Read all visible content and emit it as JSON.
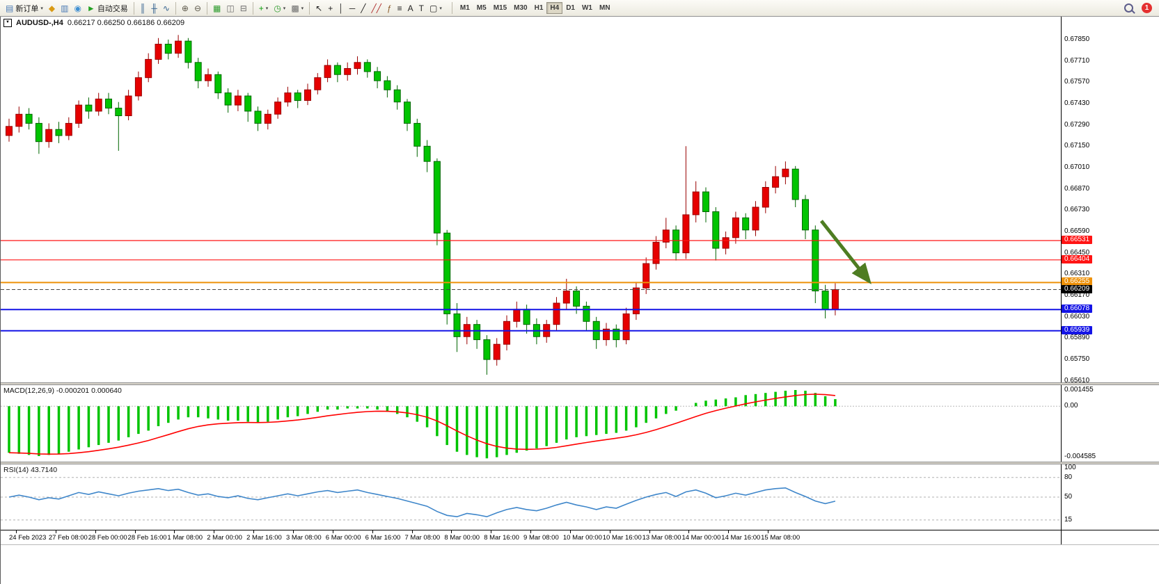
{
  "toolbar": {
    "notification": "1",
    "timeframes": [
      "M1",
      "M5",
      "M15",
      "M30",
      "H1",
      "H4",
      "D1",
      "W1",
      "MN"
    ],
    "active_timeframe": "H4",
    "buttons": [
      {
        "name": "new-order-button",
        "glyph": "▤",
        "color": "#4a7ab5",
        "label": "新订单",
        "caret": true
      },
      {
        "name": "chart-profile-button",
        "glyph": "◆",
        "color": "#d99a14"
      },
      {
        "name": "charts-list-button",
        "glyph": "▥",
        "color": "#4a7ab5"
      },
      {
        "name": "web-terminal-button",
        "glyph": "◉",
        "color": "#3f8fd2"
      },
      {
        "name": "autotrade-button",
        "glyph": "►",
        "color": "#21a121",
        "label": "自动交易"
      },
      {
        "sep": true
      },
      {
        "name": "bar-chart-mode-button",
        "glyph": "║",
        "color": "#33618f"
      },
      {
        "name": "candle-chart-mode-button",
        "glyph": "╫",
        "color": "#33618f"
      },
      {
        "name": "line-chart-mode-button",
        "glyph": "∿",
        "color": "#33618f"
      },
      {
        "sep": true
      },
      {
        "name": "zoom-in-button",
        "glyph": "⊕",
        "color": "#5a5648"
      },
      {
        "name": "zoom-out-button",
        "glyph": "⊖",
        "color": "#5a5648"
      },
      {
        "sep": true
      },
      {
        "name": "tile-windows-button",
        "glyph": "▦",
        "color": "#2a9a2a"
      },
      {
        "name": "arrange-windows-button",
        "glyph": "◫",
        "color": "#6a6a6a"
      },
      {
        "name": "cascade-windows-button",
        "glyph": "⊟",
        "color": "#6a6a6a"
      },
      {
        "sep": true
      },
      {
        "name": "add-indicator-button",
        "glyph": "+",
        "color": "#0b9e0b",
        "caret": true
      },
      {
        "name": "period-selector-button",
        "glyph": "◷",
        "color": "#2a9a2a",
        "caret": true
      },
      {
        "name": "templates-button",
        "glyph": "▩",
        "color": "#6a6a6a",
        "caret": true
      },
      {
        "sep": true
      },
      {
        "name": "cursor-tool-button",
        "glyph": "↖",
        "color": "#222222"
      },
      {
        "name": "crosshair-tool-button",
        "glyph": "+",
        "color": "#222222"
      },
      {
        "name": "vertical-line-tool-button",
        "glyph": "│",
        "color": "#222222"
      },
      {
        "name": "horizontal-line-tool-button",
        "glyph": "─",
        "color": "#222222"
      },
      {
        "name": "trendline-tool-button",
        "glyph": "╱",
        "color": "#222222"
      },
      {
        "name": "channel-tool-button",
        "glyph": "╱╱",
        "color": "#b03030"
      },
      {
        "name": "fibonacci-tool-button",
        "glyph": "ƒ",
        "color": "#8a5a2a"
      },
      {
        "name": "equidistant-tool-button",
        "glyph": "≡",
        "color": "#222222"
      },
      {
        "name": "text-tool-button",
        "glyph": "A",
        "color": "#222222"
      },
      {
        "name": "label-tool-button",
        "glyph": "T",
        "color": "#222222"
      },
      {
        "name": "shapes-tool-button",
        "glyph": "▢",
        "color": "#222222",
        "caret": true
      }
    ]
  },
  "chart": {
    "title": "AUDUSD-,H4",
    "ohlc": "0.66217 0.66250 0.66186 0.66209",
    "collapse_glyph": "▼"
  },
  "chart_data": {
    "type": "candlestick",
    "symbol": "AUDUSD-",
    "timeframe": "H4",
    "colors": {
      "bull": "#e60000",
      "bull_border": "#990000",
      "bear": "#00c400",
      "bear_border": "#006600"
    },
    "price_axis": {
      "top": 0.68,
      "bottom": 0.656,
      "ticks": [
        "0.67850",
        "0.67710",
        "0.67570",
        "0.67430",
        "0.67290",
        "0.67150",
        "0.67010",
        "0.66870",
        "0.66730",
        "0.66590",
        "0.66450",
        "0.66310",
        "0.66170",
        "0.66030",
        "0.65890",
        "0.65750",
        "0.65610"
      ]
    },
    "hlines": [
      {
        "price": 0.66531,
        "label": "0.66531",
        "color": "#ff1414",
        "width": 1.2
      },
      {
        "price": 0.66404,
        "label": "0.66404",
        "color": "#ff1414",
        "width": 1.2
      },
      {
        "price": 0.66255,
        "label": "0.66255",
        "color": "#ee9109",
        "width": 2
      },
      {
        "price": 0.66078,
        "label": "0.66078",
        "color": "#1414e6",
        "width": 2
      },
      {
        "price": 0.65939,
        "label": "0.65939",
        "color": "#1414e6",
        "width": 2
      }
    ],
    "current_price": {
      "value": 0.66209,
      "label": "0.66209",
      "color": "#000000"
    },
    "arrow": {
      "from_candle": 81.6,
      "from_price": 0.6666,
      "to_candle": 86.2,
      "to_price": 0.6628,
      "color": "#4e7d22"
    },
    "candles": [
      [
        0.6722,
        0.6733,
        0.6718,
        0.6728
      ],
      [
        0.6728,
        0.6741,
        0.6724,
        0.6736
      ],
      [
        0.6736,
        0.674,
        0.6726,
        0.673
      ],
      [
        0.673,
        0.6734,
        0.671,
        0.6718
      ],
      [
        0.6718,
        0.673,
        0.6714,
        0.6726
      ],
      [
        0.6726,
        0.6731,
        0.6717,
        0.6722
      ],
      [
        0.6722,
        0.6734,
        0.6719,
        0.673
      ],
      [
        0.673,
        0.6745,
        0.6727,
        0.6742
      ],
      [
        0.6742,
        0.6747,
        0.6733,
        0.6738
      ],
      [
        0.6738,
        0.675,
        0.6735,
        0.6746
      ],
      [
        0.6746,
        0.675,
        0.6736,
        0.674
      ],
      [
        0.674,
        0.6744,
        0.6712,
        0.6735
      ],
      [
        0.6735,
        0.6752,
        0.6732,
        0.6748
      ],
      [
        0.6748,
        0.6764,
        0.6745,
        0.676
      ],
      [
        0.676,
        0.6776,
        0.6757,
        0.6772
      ],
      [
        0.6772,
        0.6786,
        0.6769,
        0.6782
      ],
      [
        0.6782,
        0.6785,
        0.6772,
        0.6776
      ],
      [
        0.6776,
        0.6788,
        0.6773,
        0.6784
      ],
      [
        0.6784,
        0.6786,
        0.6766,
        0.677
      ],
      [
        0.677,
        0.6773,
        0.6753,
        0.6758
      ],
      [
        0.6758,
        0.6766,
        0.6754,
        0.6762
      ],
      [
        0.6762,
        0.6764,
        0.6746,
        0.675
      ],
      [
        0.675,
        0.6753,
        0.6737,
        0.6742
      ],
      [
        0.6742,
        0.6752,
        0.6738,
        0.6748
      ],
      [
        0.6748,
        0.675,
        0.6731,
        0.6738
      ],
      [
        0.6738,
        0.6741,
        0.6725,
        0.673
      ],
      [
        0.673,
        0.6739,
        0.6726,
        0.6736
      ],
      [
        0.6736,
        0.6747,
        0.6733,
        0.6744
      ],
      [
        0.6744,
        0.6754,
        0.6741,
        0.675
      ],
      [
        0.675,
        0.6752,
        0.674,
        0.6745
      ],
      [
        0.6745,
        0.6756,
        0.6742,
        0.6752
      ],
      [
        0.6752,
        0.6763,
        0.6749,
        0.676
      ],
      [
        0.676,
        0.6772,
        0.6757,
        0.6768
      ],
      [
        0.6768,
        0.677,
        0.6757,
        0.6762
      ],
      [
        0.6762,
        0.677,
        0.6758,
        0.6766
      ],
      [
        0.6766,
        0.6774,
        0.6762,
        0.677
      ],
      [
        0.677,
        0.6772,
        0.676,
        0.6764
      ],
      [
        0.6764,
        0.6767,
        0.6753,
        0.6758
      ],
      [
        0.6758,
        0.6761,
        0.6747,
        0.6752
      ],
      [
        0.6752,
        0.6755,
        0.6739,
        0.6744
      ],
      [
        0.6744,
        0.6746,
        0.6725,
        0.673
      ],
      [
        0.673,
        0.6733,
        0.6708,
        0.6715
      ],
      [
        0.6715,
        0.6719,
        0.6698,
        0.6705
      ],
      [
        0.6705,
        0.6707,
        0.665,
        0.6658
      ],
      [
        0.6658,
        0.666,
        0.6598,
        0.6605
      ],
      [
        0.6605,
        0.6612,
        0.658,
        0.659
      ],
      [
        0.659,
        0.6603,
        0.6585,
        0.6598
      ],
      [
        0.6598,
        0.6601,
        0.6582,
        0.6588
      ],
      [
        0.6588,
        0.6591,
        0.6565,
        0.6575
      ],
      [
        0.6575,
        0.6589,
        0.6571,
        0.6585
      ],
      [
        0.6585,
        0.6604,
        0.6581,
        0.66
      ],
      [
        0.66,
        0.6613,
        0.6596,
        0.6608
      ],
      [
        0.6608,
        0.6611,
        0.6592,
        0.6598
      ],
      [
        0.6598,
        0.6602,
        0.6585,
        0.659
      ],
      [
        0.659,
        0.6601,
        0.6586,
        0.6598
      ],
      [
        0.6598,
        0.6616,
        0.6594,
        0.6612
      ],
      [
        0.6612,
        0.6628,
        0.6608,
        0.662
      ],
      [
        0.662,
        0.6623,
        0.6605,
        0.661
      ],
      [
        0.661,
        0.6613,
        0.6594,
        0.66
      ],
      [
        0.66,
        0.6603,
        0.6582,
        0.6588
      ],
      [
        0.6588,
        0.6599,
        0.6584,
        0.6595
      ],
      [
        0.6595,
        0.6598,
        0.6583,
        0.6588
      ],
      [
        0.6588,
        0.6609,
        0.6585,
        0.6605
      ],
      [
        0.6605,
        0.6626,
        0.6601,
        0.6622
      ],
      [
        0.6622,
        0.6642,
        0.6618,
        0.6638
      ],
      [
        0.6638,
        0.6656,
        0.6634,
        0.6652
      ],
      [
        0.6652,
        0.6668,
        0.6648,
        0.666
      ],
      [
        0.666,
        0.6663,
        0.664,
        0.6645
      ],
      [
        0.6645,
        0.6715,
        0.6641,
        0.667
      ],
      [
        0.667,
        0.6692,
        0.6665,
        0.6685
      ],
      [
        0.6685,
        0.6688,
        0.6665,
        0.6672
      ],
      [
        0.6672,
        0.6675,
        0.664,
        0.6648
      ],
      [
        0.6648,
        0.6659,
        0.6644,
        0.6655
      ],
      [
        0.6655,
        0.6672,
        0.6651,
        0.6668
      ],
      [
        0.6668,
        0.6671,
        0.6654,
        0.666
      ],
      [
        0.666,
        0.6679,
        0.6656,
        0.6675
      ],
      [
        0.6675,
        0.6692,
        0.6671,
        0.6688
      ],
      [
        0.6688,
        0.6702,
        0.6684,
        0.6695
      ],
      [
        0.6695,
        0.6705,
        0.669,
        0.67
      ],
      [
        0.67,
        0.6702,
        0.6675,
        0.668
      ],
      [
        0.668,
        0.6683,
        0.6654,
        0.666
      ],
      [
        0.666,
        0.6663,
        0.6612,
        0.662
      ],
      [
        0.662,
        0.6624,
        0.6602,
        0.6608
      ],
      [
        0.6608,
        0.6625,
        0.6604,
        0.66209
      ]
    ],
    "time_labels": [
      "24 Feb 2023",
      "27 Feb 08:00",
      "28 Feb 00:00",
      "28 Feb 16:00",
      "1 Mar 08:00",
      "2 Mar 00:00",
      "2 Mar 16:00",
      "3 Mar 08:00",
      "6 Mar 00:00",
      "6 Mar 16:00",
      "7 Mar 08:00",
      "8 Mar 00:00",
      "8 Mar 16:00",
      "9 Mar 08:00",
      "10 Mar 00:00",
      "10 Mar 16:00",
      "13 Mar 08:00",
      "14 Mar 00:00",
      "14 Mar 16:00",
      "15 Mar 08:00"
    ],
    "macd": {
      "label": "MACD(12,26,9) -0.000201 0.000640",
      "histogram_color": "#00c400",
      "signal_color": "#ff0000",
      "ylim": [
        -0.005,
        0.0019
      ],
      "axis": [
        "0.001455",
        "0.00",
        "-0.004585"
      ],
      "values": [
        -0.0042,
        -0.0043,
        -0.0044,
        -0.0045,
        -0.0044,
        -0.0043,
        -0.0041,
        -0.0039,
        -0.0037,
        -0.0035,
        -0.0033,
        -0.0031,
        -0.0028,
        -0.0025,
        -0.0022,
        -0.0018,
        -0.0015,
        -0.0012,
        -0.001,
        -0.001,
        -0.0011,
        -0.0012,
        -0.0013,
        -0.0013,
        -0.0014,
        -0.0015,
        -0.0014,
        -0.0012,
        -0.001,
        -0.0009,
        -0.0007,
        -0.0005,
        -0.0003,
        -0.0003,
        -0.0002,
        -0.0002,
        -0.0002,
        -0.0003,
        -0.0005,
        -0.0007,
        -0.001,
        -0.0014,
        -0.0019,
        -0.0027,
        -0.0035,
        -0.0041,
        -0.0044,
        -0.0046,
        -0.0047,
        -0.0046,
        -0.0044,
        -0.0042,
        -0.004,
        -0.0038,
        -0.0036,
        -0.0033,
        -0.003,
        -0.0028,
        -0.0027,
        -0.0026,
        -0.0025,
        -0.0024,
        -0.0022,
        -0.0019,
        -0.0015,
        -0.0011,
        -0.0007,
        -0.0004,
        0.0,
        0.0003,
        0.0005,
        0.0006,
        0.0007,
        0.0008,
        0.001,
        0.0011,
        0.0012,
        0.0013,
        0.0014,
        0.00146,
        0.0014,
        0.0012,
        0.0009,
        0.00064
      ]
    },
    "rsi": {
      "label": "RSI(14) 43.7140",
      "line_color": "#3e86ca",
      "levels": [
        80,
        50,
        15
      ],
      "axis": [
        "100",
        "80",
        "50",
        "15"
      ],
      "ylim": [
        0,
        100
      ],
      "values": [
        50,
        53,
        50,
        46,
        49,
        47,
        52,
        57,
        54,
        58,
        55,
        52,
        56,
        59,
        61,
        63,
        60,
        62,
        57,
        53,
        55,
        51,
        49,
        52,
        48,
        46,
        49,
        52,
        55,
        52,
        55,
        58,
        60,
        57,
        59,
        61,
        57,
        54,
        51,
        48,
        44,
        40,
        36,
        28,
        22,
        20,
        25,
        23,
        20,
        26,
        31,
        34,
        31,
        29,
        33,
        38,
        42,
        38,
        35,
        31,
        35,
        33,
        39,
        45,
        50,
        54,
        57,
        51,
        58,
        61,
        56,
        49,
        52,
        56,
        53,
        57,
        61,
        63,
        64,
        57,
        51,
        44,
        40,
        43.71
      ]
    }
  }
}
